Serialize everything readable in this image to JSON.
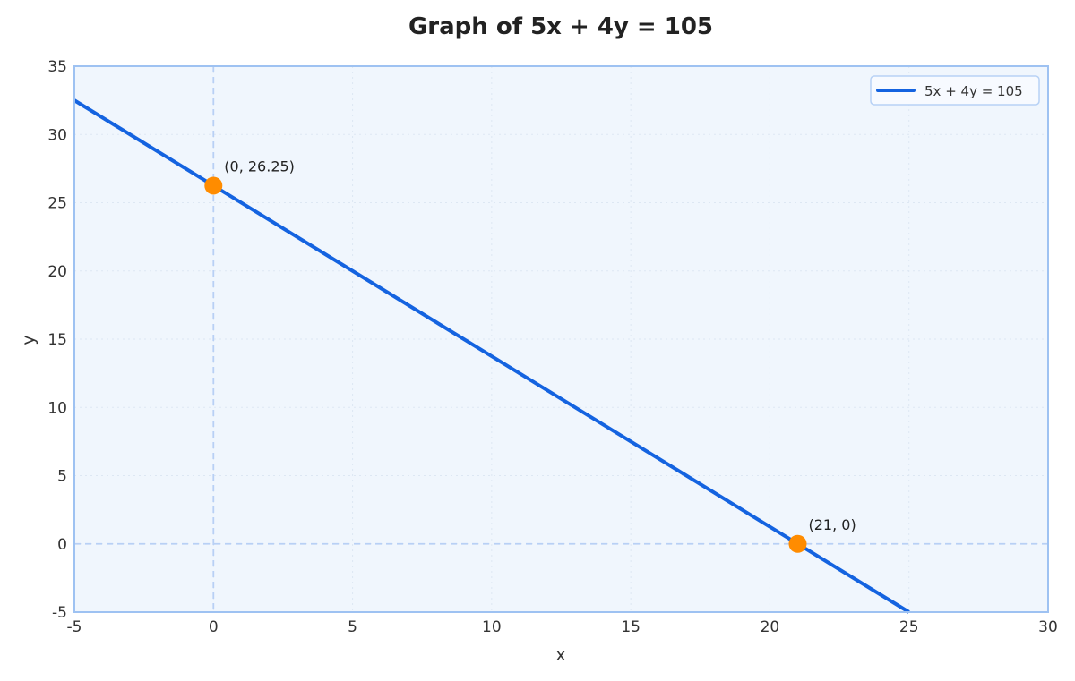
{
  "chart_data": {
    "type": "line",
    "title": "Graph of 5x + 4y = 105",
    "xlabel": "x",
    "ylabel": "y",
    "xlim": [
      -5,
      30
    ],
    "ylim": [
      -5,
      35
    ],
    "xticks": [
      "-5",
      "0",
      "5",
      "10",
      "15",
      "20",
      "25",
      "30"
    ],
    "yticks": [
      "-5",
      "0",
      "5",
      "10",
      "15",
      "20",
      "25",
      "30",
      "35"
    ],
    "grid": true,
    "legend_position": "top-right",
    "series": [
      {
        "name": "5x + 4y = 105",
        "color": "#1463e0",
        "x": [
          -5,
          25
        ],
        "y": [
          32.5,
          -5
        ]
      }
    ],
    "points": [
      {
        "x": 0,
        "y": 26.25,
        "label": "(0, 26.25)",
        "color": "#ff8c00"
      },
      {
        "x": 21,
        "y": 0,
        "label": "(21, 0)",
        "color": "#ff8c00"
      }
    ],
    "reference_lines": [
      {
        "axis": "x",
        "value": 0,
        "color": "#b8d0f5"
      },
      {
        "axis": "y",
        "value": 0,
        "color": "#b8d0f5"
      }
    ],
    "colors": {
      "plot_background": "#f0f6fd",
      "plot_border": "#9ec2f2",
      "grid": "#dde7f3"
    }
  }
}
